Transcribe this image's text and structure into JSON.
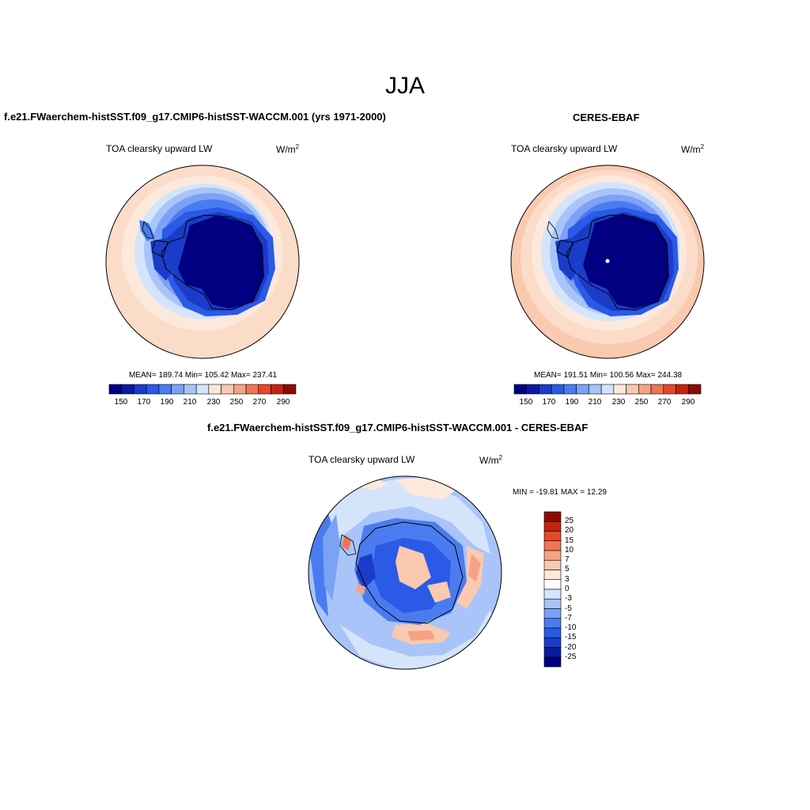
{
  "title": "JJA",
  "panels": [
    {
      "title": "f.e21.FWaerchem-histSST.f09_g17.CMIP6-histSST-WACCM.001 (yrs 1971-2000)",
      "variable": "TOA clearsky upward LW",
      "units_base": "W/m",
      "units_exp": "2",
      "stats": "MEAN= 189.74  Min= 105.42  Max= 237.41"
    },
    {
      "title": "CERES-EBAF",
      "variable": "TOA clearsky upward LW",
      "units_base": "W/m",
      "units_exp": "2",
      "stats": "MEAN= 191.51  Min= 100.56  Max= 244.38"
    },
    {
      "title": "f.e21.FWaerchem-histSST.f09_g17.CMIP6-histSST-WACCM.001 - CERES-EBAF",
      "variable": "TOA clearsky upward LW",
      "units_base": "W/m",
      "units_exp": "2",
      "stats": "MIN = -19.81 MAX =  12.29"
    }
  ],
  "colorbar_main": {
    "tick_labels": [
      "150",
      "170",
      "190",
      "210",
      "230",
      "250",
      "270",
      "290"
    ],
    "colors": [
      "#000080",
      "#0a1aa0",
      "#1a3cc8",
      "#2a5ae6",
      "#4a7cf0",
      "#7ba2f5",
      "#a9c4f8",
      "#d4e4fb",
      "#fde9dc",
      "#f9c9b0",
      "#f4a384",
      "#ee7654",
      "#e4492a",
      "#c2240f",
      "#8a0a06"
    ]
  },
  "colorbar_diff": {
    "tick_labels": [
      "25",
      "20",
      "15",
      "10",
      "7",
      "5",
      "3",
      "0",
      "-3",
      "-5",
      "-7",
      "-10",
      "-15",
      "-20",
      "-25"
    ],
    "colors": [
      "#8a0a06",
      "#c2240f",
      "#e4492a",
      "#ee7654",
      "#f4a384",
      "#f9c9b0",
      "#fde9dc",
      "#ffffff",
      "#d4e4fb",
      "#a9c4f8",
      "#7ba2f5",
      "#4a7cf0",
      "#2a5ae6",
      "#1a3cc8",
      "#0a1aa0",
      "#000080"
    ]
  }
}
